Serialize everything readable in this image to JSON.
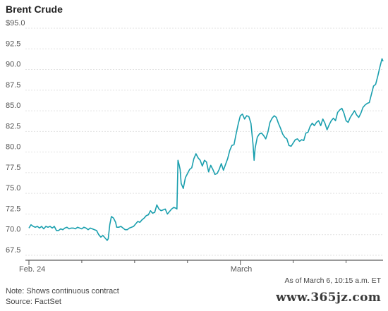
{
  "chart_data": {
    "type": "line",
    "title": "Brent Crude",
    "xlabel": "",
    "ylabel": "",
    "ylim": [
      68.5,
      95.0
    ],
    "y_ticks": [
      {
        "value": 95.0,
        "label": "$95.0"
      },
      {
        "value": 92.5,
        "label": "92.5"
      },
      {
        "value": 90.0,
        "label": "90.0"
      },
      {
        "value": 87.5,
        "label": "87.5"
      },
      {
        "value": 85.0,
        "label": "85.0"
      },
      {
        "value": 82.5,
        "label": "82.5"
      },
      {
        "value": 80.0,
        "label": "80.0"
      },
      {
        "value": 77.5,
        "label": "77.5"
      },
      {
        "value": 75.0,
        "label": "75.0"
      },
      {
        "value": 72.5,
        "label": "72.5"
      },
      {
        "value": 70.0,
        "label": "70.0"
      },
      {
        "value": 67.5,
        "label": "67.5"
      }
    ],
    "x_ticks": [
      {
        "t": 0.0,
        "label": "Feb. 24"
      },
      {
        "t": 1.0,
        "label": ""
      },
      {
        "t": 2.0,
        "label": ""
      },
      {
        "t": 3.0,
        "label": ""
      },
      {
        "t": 4.0,
        "label": "March"
      },
      {
        "t": 5.0,
        "label": ""
      },
      {
        "t": 6.0,
        "label": ""
      },
      {
        "t": 7.0,
        "label": ""
      },
      {
        "t": 8.0,
        "label": ""
      }
    ],
    "grid": true,
    "line_color": "#1a9fae",
    "series": [
      {
        "points": [
          [
            0.0,
            70.8
          ],
          [
            0.04,
            71.2
          ],
          [
            0.08,
            71.0
          ],
          [
            0.12,
            70.9
          ],
          [
            0.16,
            71.0
          ],
          [
            0.2,
            70.8
          ],
          [
            0.24,
            71.0
          ],
          [
            0.28,
            70.7
          ],
          [
            0.32,
            71.0
          ],
          [
            0.36,
            70.9
          ],
          [
            0.4,
            71.0
          ],
          [
            0.44,
            70.8
          ],
          [
            0.48,
            71.0
          ],
          [
            0.52,
            70.5
          ],
          [
            0.56,
            70.5
          ],
          [
            0.6,
            70.7
          ],
          [
            0.64,
            70.6
          ],
          [
            0.68,
            70.8
          ],
          [
            0.72,
            70.9
          ],
          [
            0.76,
            70.7
          ],
          [
            0.8,
            70.8
          ],
          [
            0.84,
            70.8
          ],
          [
            0.88,
            70.7
          ],
          [
            0.92,
            70.9
          ],
          [
            0.96,
            70.8
          ],
          [
            1.0,
            70.7
          ],
          [
            1.04,
            70.9
          ],
          [
            1.08,
            70.8
          ],
          [
            1.12,
            70.6
          ],
          [
            1.16,
            70.8
          ],
          [
            1.2,
            70.7
          ],
          [
            1.24,
            70.6
          ],
          [
            1.28,
            70.5
          ],
          [
            1.32,
            70.0
          ],
          [
            1.36,
            69.7
          ],
          [
            1.4,
            69.9
          ],
          [
            1.44,
            69.6
          ],
          [
            1.48,
            69.3
          ],
          [
            1.5,
            69.5
          ],
          [
            1.53,
            71.2
          ],
          [
            1.56,
            72.2
          ],
          [
            1.6,
            72.0
          ],
          [
            1.64,
            71.5
          ],
          [
            1.66,
            70.9
          ],
          [
            1.7,
            70.9
          ],
          [
            1.74,
            71.0
          ],
          [
            1.78,
            70.8
          ],
          [
            1.82,
            70.6
          ],
          [
            1.86,
            70.6
          ],
          [
            1.9,
            70.8
          ],
          [
            1.94,
            70.9
          ],
          [
            1.98,
            71.0
          ],
          [
            2.02,
            71.3
          ],
          [
            2.06,
            71.6
          ],
          [
            2.1,
            71.5
          ],
          [
            2.14,
            71.8
          ],
          [
            2.18,
            72.0
          ],
          [
            2.22,
            72.3
          ],
          [
            2.26,
            72.4
          ],
          [
            2.3,
            72.9
          ],
          [
            2.34,
            72.6
          ],
          [
            2.38,
            72.7
          ],
          [
            2.42,
            73.6
          ],
          [
            2.46,
            73.1
          ],
          [
            2.5,
            72.9
          ],
          [
            2.54,
            73.0
          ],
          [
            2.58,
            73.1
          ],
          [
            2.62,
            72.5
          ],
          [
            2.66,
            72.8
          ],
          [
            2.7,
            73.1
          ],
          [
            2.74,
            73.3
          ],
          [
            2.78,
            73.2
          ],
          [
            2.8,
            73.1
          ],
          [
            2.82,
            79.0
          ],
          [
            2.84,
            78.5
          ],
          [
            2.86,
            77.9
          ],
          [
            2.88,
            76.2
          ],
          [
            2.92,
            75.6
          ],
          [
            2.96,
            76.9
          ],
          [
            3.0,
            77.4
          ],
          [
            3.04,
            77.9
          ],
          [
            3.08,
            78.1
          ],
          [
            3.12,
            79.2
          ],
          [
            3.16,
            79.8
          ],
          [
            3.2,
            79.3
          ],
          [
            3.24,
            79.0
          ],
          [
            3.28,
            78.3
          ],
          [
            3.32,
            79.0
          ],
          [
            3.36,
            78.8
          ],
          [
            3.4,
            77.6
          ],
          [
            3.44,
            78.4
          ],
          [
            3.48,
            77.9
          ],
          [
            3.52,
            77.3
          ],
          [
            3.56,
            77.4
          ],
          [
            3.6,
            77.9
          ],
          [
            3.64,
            78.6
          ],
          [
            3.68,
            77.8
          ],
          [
            3.72,
            78.5
          ],
          [
            3.76,
            79.2
          ],
          [
            3.8,
            80.2
          ],
          [
            3.84,
            80.8
          ],
          [
            3.88,
            80.9
          ],
          [
            3.92,
            82.2
          ],
          [
            3.96,
            83.4
          ],
          [
            4.0,
            84.4
          ],
          [
            4.04,
            84.6
          ],
          [
            4.08,
            84.0
          ],
          [
            4.12,
            84.4
          ],
          [
            4.16,
            84.3
          ],
          [
            4.2,
            83.5
          ],
          [
            4.22,
            82.2
          ],
          [
            4.24,
            80.9
          ],
          [
            4.26,
            79.0
          ],
          [
            4.28,
            80.5
          ],
          [
            4.32,
            81.8
          ],
          [
            4.36,
            82.2
          ],
          [
            4.4,
            82.3
          ],
          [
            4.44,
            82.0
          ],
          [
            4.48,
            81.6
          ],
          [
            4.52,
            82.4
          ],
          [
            4.56,
            83.6
          ],
          [
            4.6,
            84.1
          ],
          [
            4.64,
            84.4
          ],
          [
            4.68,
            84.2
          ],
          [
            4.72,
            83.5
          ],
          [
            4.76,
            82.9
          ],
          [
            4.8,
            82.2
          ],
          [
            4.84,
            81.8
          ],
          [
            4.88,
            81.6
          ],
          [
            4.92,
            80.8
          ],
          [
            4.96,
            80.7
          ],
          [
            5.0,
            81.1
          ],
          [
            5.04,
            81.5
          ],
          [
            5.08,
            81.6
          ],
          [
            5.12,
            81.3
          ],
          [
            5.16,
            81.5
          ],
          [
            5.2,
            81.4
          ],
          [
            5.24,
            82.3
          ],
          [
            5.28,
            82.4
          ],
          [
            5.32,
            83.1
          ],
          [
            5.36,
            83.5
          ],
          [
            5.4,
            83.2
          ],
          [
            5.44,
            83.6
          ],
          [
            5.48,
            83.8
          ],
          [
            5.52,
            83.2
          ],
          [
            5.56,
            84.0
          ],
          [
            5.6,
            83.5
          ],
          [
            5.64,
            82.7
          ],
          [
            5.68,
            83.3
          ],
          [
            5.72,
            83.8
          ],
          [
            5.76,
            84.1
          ],
          [
            5.8,
            83.8
          ],
          [
            5.84,
            84.8
          ],
          [
            5.88,
            85.1
          ],
          [
            5.92,
            85.3
          ],
          [
            5.96,
            84.7
          ],
          [
            6.0,
            83.8
          ],
          [
            6.04,
            83.6
          ],
          [
            6.08,
            84.2
          ],
          [
            6.12,
            84.6
          ],
          [
            6.16,
            85.0
          ],
          [
            6.2,
            84.5
          ],
          [
            6.24,
            84.2
          ],
          [
            6.28,
            84.7
          ],
          [
            6.32,
            85.4
          ],
          [
            6.36,
            85.7
          ],
          [
            6.4,
            85.9
          ],
          [
            6.44,
            86.0
          ],
          [
            6.48,
            87.0
          ],
          [
            6.52,
            88.0
          ],
          [
            6.56,
            88.2
          ],
          [
            6.6,
            89.2
          ],
          [
            6.64,
            90.3
          ],
          [
            6.68,
            91.3
          ],
          [
            6.7,
            91.0
          ]
        ]
      }
    ]
  },
  "footer": {
    "as_of": "As of March 6, 10:15 a.m. ET",
    "note": "Note: Shows continuous contract",
    "source": "Source: FactSet"
  },
  "watermark": "www.365jz.com"
}
